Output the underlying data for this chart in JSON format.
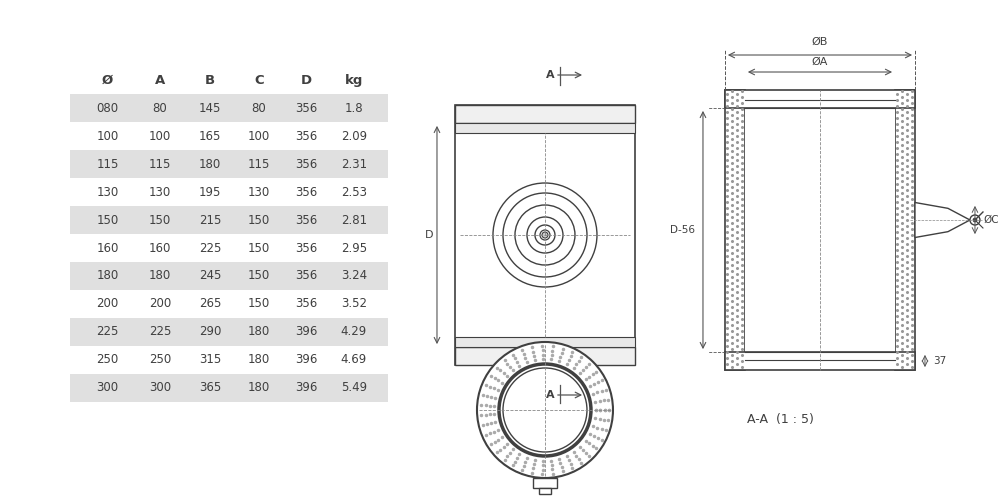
{
  "bg_color": "#ffffff",
  "table_headers": [
    "Ø",
    "A",
    "B",
    "C",
    "D",
    "kg"
  ],
  "table_data": [
    [
      "080",
      "80",
      "145",
      "80",
      "356",
      "1.8"
    ],
    [
      "100",
      "100",
      "165",
      "100",
      "356",
      "2.09"
    ],
    [
      "115",
      "115",
      "180",
      "115",
      "356",
      "2.31"
    ],
    [
      "130",
      "130",
      "195",
      "130",
      "356",
      "2.53"
    ],
    [
      "150",
      "150",
      "215",
      "150",
      "356",
      "2.81"
    ],
    [
      "160",
      "160",
      "225",
      "150",
      "356",
      "2.95"
    ],
    [
      "180",
      "180",
      "245",
      "150",
      "356",
      "3.24"
    ],
    [
      "200",
      "200",
      "265",
      "150",
      "356",
      "3.52"
    ],
    [
      "225",
      "225",
      "290",
      "180",
      "396",
      "4.29"
    ],
    [
      "250",
      "250",
      "315",
      "180",
      "396",
      "4.69"
    ],
    [
      "300",
      "300",
      "365",
      "180",
      "396",
      "5.49"
    ]
  ],
  "row_shaded": [
    0,
    2,
    4,
    6,
    8,
    10
  ],
  "shaded_color": "#e0e0e0",
  "white_color": "#ffffff",
  "line_color": "#404040",
  "text_color": "#404040",
  "dim_color": "#555555",
  "annotation_text": "A-A  (1 : 5)"
}
